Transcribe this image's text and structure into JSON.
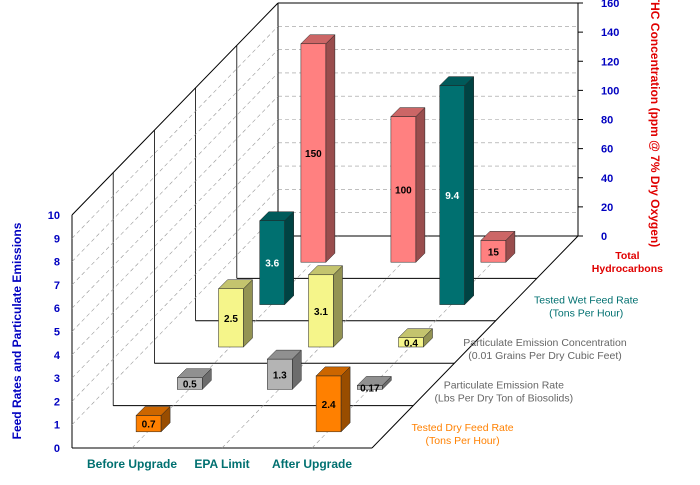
{
  "chart_data": {
    "type": "bar",
    "style": "3d-depth-rows",
    "categories": [
      "Before Upgrade",
      "EPA Limit",
      "After Upgrade"
    ],
    "left_axis": {
      "label": "Feed Rates and Particulate Emissions",
      "range": [
        0,
        10
      ],
      "ticks": [
        "0",
        "1",
        "2",
        "3",
        "4",
        "5",
        "6",
        "7",
        "8",
        "9",
        "10"
      ]
    },
    "right_axis": {
      "label": "THC Concentration (ppm @ 7% Dry Oxygen)",
      "range": [
        0,
        160
      ],
      "ticks": [
        "0",
        "20",
        "40",
        "60",
        "80",
        "100",
        "120",
        "140",
        "160"
      ]
    },
    "series": [
      {
        "name": "Tested  Dry  Feed Rate",
        "name_line2": "(Tons Per Hour)",
        "axis": "left",
        "color": "#FF8000",
        "values": [
          0.7,
          null,
          2.4
        ],
        "labels": [
          "0.7",
          "",
          "2.4"
        ]
      },
      {
        "name": "Particulate Emission Rate",
        "name_line2": "(Lbs Per Dry Ton of Biosolids)",
        "axis": "left",
        "color": "#B4B4B4",
        "values": [
          0.5,
          1.3,
          0.17
        ],
        "labels": [
          "0.5",
          "1.3",
          "0.17"
        ]
      },
      {
        "name": "Particulate Emission Concentration",
        "name_line2": "(0.01 Grains  Per Dry Cubic Feet)",
        "axis": "left",
        "color": "#F5F58A",
        "values": [
          2.5,
          3.1,
          0.4
        ],
        "labels": [
          "2.5",
          "3.1",
          "0.4"
        ]
      },
      {
        "name": "Tested  Wet Feed Rate",
        "name_line2": "(Tons Per Hour)",
        "axis": "left",
        "color": "#007070",
        "values": [
          3.6,
          null,
          9.4
        ],
        "labels": [
          "3.6",
          "",
          "9.4"
        ]
      },
      {
        "name": "Total",
        "name_line2": "Hydrocarbons",
        "axis": "right",
        "color": "#FF8080",
        "values": [
          150,
          100,
          15
        ],
        "labels": [
          "150",
          "100",
          "15"
        ]
      }
    ],
    "colors": {
      "left_axis": "#0000C0",
      "right_axis": "#E00000",
      "category_labels": "#007070",
      "grid": "#999999"
    }
  }
}
